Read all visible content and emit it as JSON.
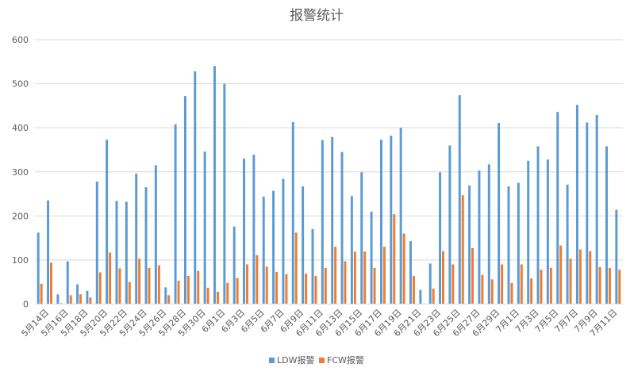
{
  "chart_data": {
    "type": "bar",
    "title": "报警统计",
    "xlabel": "",
    "ylabel": "",
    "ylim": [
      0,
      600
    ],
    "yticks": [
      0,
      100,
      200,
      300,
      400,
      500,
      600
    ],
    "grid": true,
    "legend_position": "bottom",
    "categories": [
      "5月14日",
      "5月15日",
      "5月16日",
      "5月17日",
      "5月18日",
      "5月19日",
      "5月20日",
      "5月21日",
      "5月22日",
      "5月23日",
      "5月24日",
      "5月25日",
      "5月26日",
      "5月27日",
      "5月28日",
      "5月29日",
      "5月30日",
      "5月31日",
      "6月1日",
      "6月2日",
      "6月3日",
      "6月4日",
      "6月5日",
      "6月6日",
      "6月7日",
      "6月8日",
      "6月9日",
      "6月10日",
      "6月11日",
      "6月12日",
      "6月13日",
      "6月14日",
      "6月15日",
      "6月16日",
      "6月17日",
      "6月18日",
      "6月19日",
      "6月20日",
      "6月21日",
      "6月22日",
      "6月23日",
      "6月24日",
      "6月25日",
      "6月26日",
      "6月27日",
      "6月28日",
      "6月29日",
      "6月30日",
      "7月1日",
      "7月2日",
      "7月3日",
      "7月4日",
      "7月5日",
      "7月6日",
      "7月7日",
      "7月8日",
      "7月9日",
      "7月10日",
      "7月11日",
      "7月12日"
    ],
    "tick_labels": [
      "5月14日",
      "",
      "5月16日",
      "",
      "5月18日",
      "",
      "5月20日",
      "",
      "5月22日",
      "",
      "5月24日",
      "",
      "5月26日",
      "",
      "5月28日",
      "",
      "5月30日",
      "",
      "6月1日",
      "",
      "6月3日",
      "",
      "6月5日",
      "",
      "6月7日",
      "",
      "6月9日",
      "",
      "6月11日",
      "",
      "6月13日",
      "",
      "6月15日",
      "",
      "6月17日",
      "",
      "6月19日",
      "",
      "6月21日",
      "",
      "6月23日",
      "",
      "6月25日",
      "",
      "6月27日",
      "",
      "6月29日",
      "",
      "7月1日",
      "",
      "7月3日",
      "",
      "7月5日",
      "",
      "7月7日",
      "",
      "7月9日",
      "",
      "7月11日",
      ""
    ],
    "series": [
      {
        "name": "LDW报警",
        "color": "#5B9BD5",
        "values": [
          162,
          235,
          22,
          97,
          45,
          30,
          278,
          373,
          234,
          232,
          296,
          265,
          315,
          38,
          408,
          472,
          528,
          346,
          540,
          500,
          176,
          330,
          339,
          244,
          257,
          284,
          413,
          267,
          170,
          372,
          379,
          345,
          245,
          299,
          210,
          373,
          382,
          400,
          143,
          32,
          92,
          299,
          360,
          474,
          269,
          303,
          317,
          411,
          267,
          275,
          325,
          358,
          328,
          436,
          271,
          452,
          412,
          429,
          358,
          214
        ]
      },
      {
        "name": "FCW报警",
        "color": "#ED7D31",
        "values": [
          46,
          94,
          2,
          20,
          22,
          15,
          72,
          117,
          81,
          50,
          103,
          82,
          88,
          20,
          53,
          64,
          75,
          37,
          28,
          48,
          59,
          90,
          111,
          85,
          73,
          68,
          162,
          69,
          64,
          82,
          130,
          97,
          119,
          119,
          82,
          130,
          204,
          160,
          64,
          0,
          35,
          120,
          90,
          247,
          127,
          66,
          56,
          90,
          48,
          90,
          58,
          78,
          82,
          133,
          103,
          124,
          120,
          84,
          82,
          78
        ]
      }
    ]
  }
}
